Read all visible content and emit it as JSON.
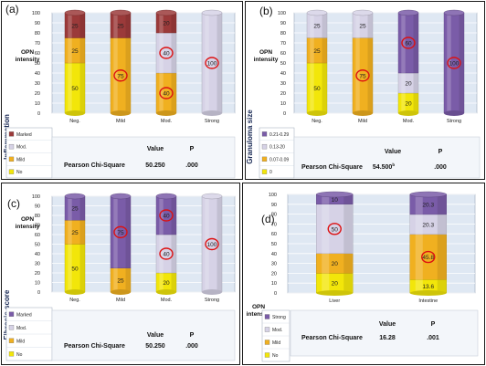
{
  "colors": {
    "marked_a": "#9b3a3a",
    "marked_cd": "#7a5ca8",
    "moderate": "#d6d2e6",
    "mild": "#f0b020",
    "no": "#f2e60a",
    "bg_light": "#dfe8f3",
    "circle": "#dd1111"
  },
  "chart_data": [
    {
      "panel": "a",
      "type": "bar",
      "stacked": true,
      "ylabel": "OPN intensity",
      "side_label": "Inflammation",
      "ylim": [
        0,
        100
      ],
      "yticks": [
        "0",
        "10",
        "20",
        "30",
        "40",
        "50",
        "60",
        "70",
        "80",
        "90",
        "100"
      ],
      "categories": [
        "Neg.",
        "Mild",
        "Mod.",
        "Strong"
      ],
      "series": [
        {
          "name": "No",
          "values": [
            50,
            0,
            0,
            0
          ],
          "color": "#f2e60a"
        },
        {
          "name": "Mild",
          "values": [
            25,
            75,
            40,
            0
          ],
          "color": "#f0b020"
        },
        {
          "name": "Mod.",
          "values": [
            0,
            0,
            40,
            100
          ],
          "color": "#d6d2e6"
        },
        {
          "name": "Marked",
          "values": [
            25,
            25,
            20,
            0
          ],
          "color": "#9b3a3a"
        }
      ],
      "seg_labels": [
        [
          "50",
          "25",
          "",
          "25"
        ],
        [
          "",
          "75",
          "",
          "25"
        ],
        [
          "",
          "40",
          "40",
          "20"
        ],
        [
          "",
          "",
          "100",
          ""
        ]
      ],
      "circled": [
        [
          0,
          0,
          0,
          0
        ],
        [
          0,
          1,
          0,
          0
        ],
        [
          0,
          1,
          1,
          0
        ],
        [
          0,
          0,
          1,
          0
        ]
      ],
      "legend": [
        "Marked",
        "Mod.",
        "Mild",
        "No"
      ],
      "stats": {
        "value_header": "Value",
        "p_header": "P",
        "row_label": "Pearson Chi-Square",
        "value": "50.250",
        "p": ".000"
      }
    },
    {
      "panel": "b",
      "type": "bar",
      "stacked": true,
      "ylabel": "OPN intensity",
      "side_label": "Granuloma size",
      "ylim": [
        0,
        100
      ],
      "yticks": [
        "0",
        "10",
        "20",
        "30",
        "40",
        "50",
        "60",
        "70",
        "80",
        "90",
        "100"
      ],
      "categories": [
        "Neg.",
        "Mild",
        "Mod.",
        "Strong"
      ],
      "series": [
        {
          "name": "0",
          "values": [
            50,
            0,
            20,
            0
          ],
          "color": "#f2e60a"
        },
        {
          "name": "0.07-0.09",
          "values": [
            25,
            75,
            0,
            0
          ],
          "color": "#f0b020"
        },
        {
          "name": "0.13-20",
          "values": [
            25,
            25,
            20,
            0
          ],
          "color": "#d6d2e6"
        },
        {
          "name": "0.21-0.29",
          "values": [
            0,
            0,
            60,
            100
          ],
          "color": "#7a5ca8"
        }
      ],
      "seg_labels": [
        [
          "50",
          "25",
          "25",
          ""
        ],
        [
          "",
          "75",
          "25",
          ""
        ],
        [
          "20",
          "",
          "20",
          "60"
        ],
        [
          "",
          "",
          "",
          "100"
        ]
      ],
      "circled": [
        [
          0,
          0,
          0,
          0
        ],
        [
          0,
          1,
          0,
          0
        ],
        [
          0,
          0,
          0,
          1
        ],
        [
          0,
          0,
          0,
          1
        ]
      ],
      "legend": [
        "0.21-0.29",
        "0.13-20",
        "0.07-0.09",
        "0"
      ],
      "stats": {
        "value_header": "Value",
        "p_header": "P",
        "row_label": "Pearson Chi-Square",
        "value": "54.500",
        "value_sup": "b",
        "p": ".000"
      }
    },
    {
      "panel": "c",
      "type": "bar",
      "stacked": true,
      "ylabel": "OPN intensity",
      "side_label": "Fibrosis score",
      "ylim": [
        0,
        100
      ],
      "yticks": [
        "0",
        "10",
        "20",
        "30",
        "40",
        "50",
        "60",
        "70",
        "80",
        "90",
        "100"
      ],
      "categories": [
        "Neg.",
        "Mild",
        "Mod.",
        "Strong"
      ],
      "series": [
        {
          "name": "No",
          "values": [
            50,
            0,
            20,
            0
          ],
          "color": "#f2e60a"
        },
        {
          "name": "Mild",
          "values": [
            25,
            25,
            0,
            0
          ],
          "color": "#f0b020"
        },
        {
          "name": "Mod.",
          "values": [
            0,
            0,
            40,
            100
          ],
          "color": "#d6d2e6"
        },
        {
          "name": "Marked",
          "values": [
            25,
            75,
            40,
            0
          ],
          "color": "#7a5ca8"
        }
      ],
      "seg_labels": [
        [
          "50",
          "25",
          "",
          "25"
        ],
        [
          "",
          "25",
          "",
          "75"
        ],
        [
          "20",
          "",
          "40",
          "40"
        ],
        [
          "",
          "",
          "100",
          ""
        ]
      ],
      "circled": [
        [
          0,
          0,
          0,
          0
        ],
        [
          0,
          0,
          0,
          1
        ],
        [
          0,
          0,
          1,
          1
        ],
        [
          0,
          0,
          1,
          0
        ]
      ],
      "legend": [
        "Marked",
        "Mod.",
        "Mild",
        "No"
      ],
      "stats": {
        "value_header": "Value",
        "p_header": "P",
        "row_label": "Pearson Chi-Square",
        "value": "50.250",
        "p": ".000"
      }
    },
    {
      "panel": "d",
      "type": "bar",
      "stacked": true,
      "ylabel": "OPN intensity",
      "side_label": "",
      "ylim": [
        0,
        100
      ],
      "yticks": [
        "0",
        "10",
        "20",
        "30",
        "40",
        "50",
        "60",
        "70",
        "80",
        "90",
        "100"
      ],
      "categories": [
        "Liver",
        "Intestine"
      ],
      "series": [
        {
          "name": "No",
          "values": [
            20,
            13.6
          ],
          "color": "#f2e60a"
        },
        {
          "name": "Mild",
          "values": [
            20,
            45.8
          ],
          "color": "#f0b020"
        },
        {
          "name": "Mod.",
          "values": [
            50,
            20.3
          ],
          "color": "#d6d2e6"
        },
        {
          "name": "Strong",
          "values": [
            10,
            20.3
          ],
          "color": "#7a5ca8"
        }
      ],
      "seg_labels": [
        [
          "20",
          "20",
          "50",
          "10"
        ],
        [
          "13.6",
          "45.8",
          "20.3",
          "20.3"
        ]
      ],
      "circled": [
        [
          0,
          0,
          1,
          0
        ],
        [
          0,
          1,
          0,
          0
        ]
      ],
      "legend": [
        "Strong",
        "Mod.",
        "Mild",
        "No"
      ],
      "stats": {
        "value_header": "Value",
        "p_header": "P",
        "row_label": "Pearson Chi-Square",
        "value": "16.28",
        "p": ".001"
      }
    }
  ],
  "panel_letters": [
    "(a)",
    "(b)",
    "(c)",
    "(d)"
  ]
}
